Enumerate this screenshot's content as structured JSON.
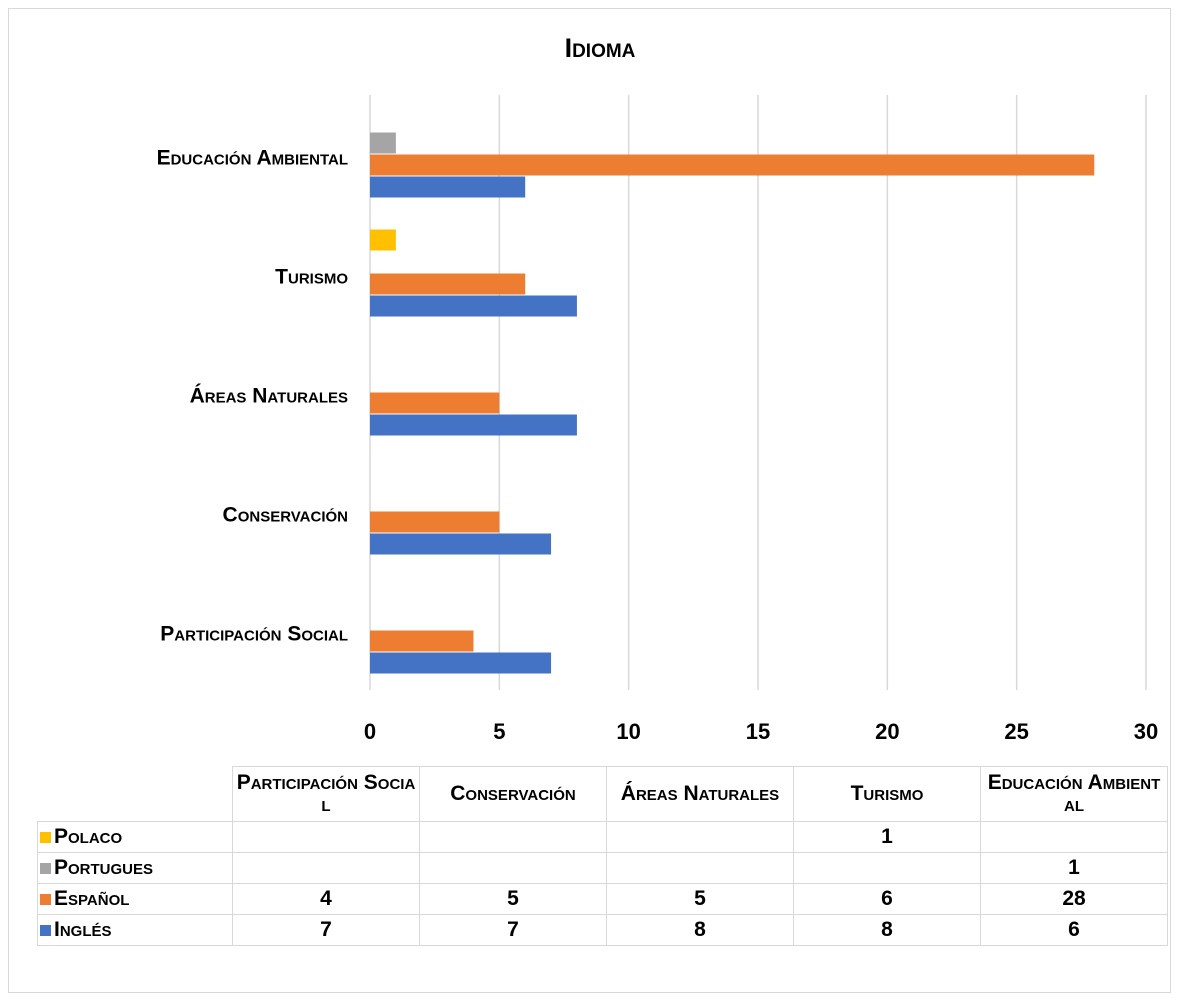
{
  "chart_data": {
    "type": "bar",
    "orientation": "horizontal",
    "title": "Idioma",
    "categories": [
      "Participación Social",
      "Conservación",
      "Áreas Naturales",
      "Turismo",
      "Educación Ambiental"
    ],
    "series": [
      {
        "name": "Polaco",
        "color": "#ffc000",
        "values": [
          null,
          null,
          null,
          1,
          null
        ]
      },
      {
        "name": "Portugues",
        "color": "#a5a5a5",
        "values": [
          null,
          null,
          null,
          null,
          1
        ]
      },
      {
        "name": "Español",
        "color": "#ed7d31",
        "values": [
          4,
          5,
          5,
          6,
          28
        ]
      },
      {
        "name": "Inglés",
        "color": "#4472c4",
        "values": [
          7,
          7,
          8,
          8,
          6
        ]
      }
    ],
    "xlim": [
      0,
      30
    ],
    "xticks": [
      0,
      5,
      10,
      15,
      20,
      25,
      30
    ],
    "grid": true
  }
}
